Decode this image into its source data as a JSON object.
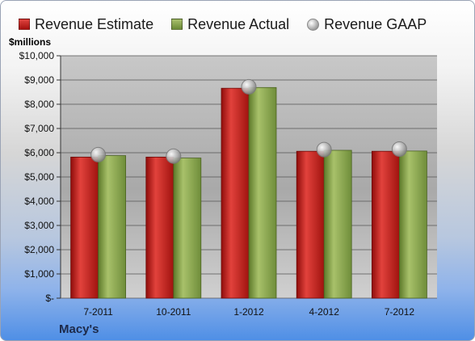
{
  "legend": {
    "estimate": "Revenue Estimate",
    "actual": "Revenue Actual",
    "gaap": "Revenue GAAP"
  },
  "units_label": "$millions",
  "company": "Macy's",
  "colors": {
    "estimate": "#c0201c",
    "actual": "#8aa653",
    "gaap": "#bdbdbd"
  },
  "chart_data": {
    "type": "bar",
    "categories": [
      "7-2011",
      "10-2011",
      "1-2012",
      "4-2012",
      "7-2012"
    ],
    "series": [
      {
        "name": "Revenue Estimate",
        "values": [
          5820,
          5820,
          8660,
          6060,
          6060
        ]
      },
      {
        "name": "Revenue Actual",
        "values": [
          5880,
          5780,
          8690,
          6100,
          6070
        ]
      },
      {
        "name": "Revenue GAAP",
        "values": [
          5920,
          5860,
          8720,
          6130,
          6150
        ]
      }
    ],
    "ylim": [
      0,
      10000
    ],
    "yticks": [
      0,
      1000,
      2000,
      3000,
      4000,
      5000,
      6000,
      7000,
      8000,
      9000,
      10000
    ],
    "ytick_labels": [
      "$-",
      "$1,000",
      "$2,000",
      "$3,000",
      "$4,000",
      "$5,000",
      "$6,000",
      "$7,000",
      "$8,000",
      "$9,000",
      "$10,000"
    ],
    "grid": true,
    "legend_position": "top"
  }
}
